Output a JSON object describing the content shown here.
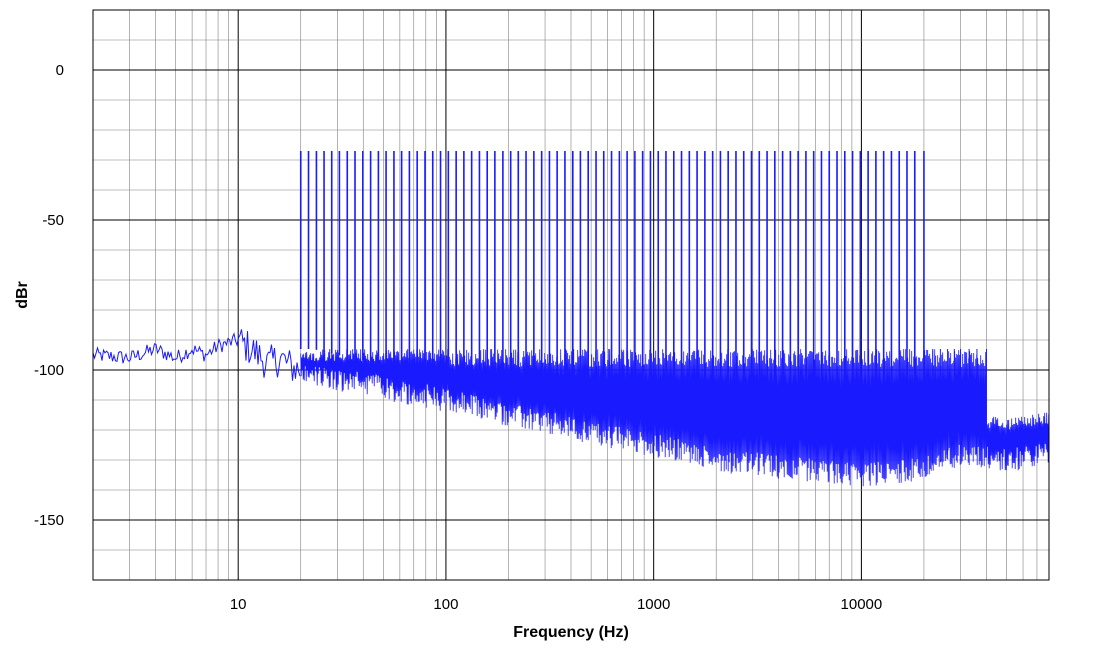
{
  "chart_data": {
    "type": "line",
    "title": "",
    "xlabel": "Frequency (Hz)",
    "ylabel": "dBr",
    "x_scale": "log",
    "xlim": [
      2,
      80000
    ],
    "ylim": [
      -170,
      20
    ],
    "x_ticks": [
      10,
      100,
      1000,
      10000
    ],
    "x_tick_labels": [
      "10",
      "100",
      "1000",
      "10000"
    ],
    "y_ticks": [
      0,
      -50,
      -100,
      -150
    ],
    "y_tick_labels": [
      "0",
      "-50",
      "-100",
      "-150"
    ],
    "grid": true,
    "legend": "none",
    "colors": {
      "series": "#1a1aff",
      "grid": "#808080",
      "major_grid": "#000000",
      "background": "#ffffff"
    },
    "series": [
      {
        "tone_peaks_db": -27,
        "tone_frequencies_hz": [
          20,
          21.8,
          23.8,
          25.9,
          28.2,
          30.7,
          33.5,
          36.5,
          39.8,
          43.4,
          47.3,
          51.5,
          56.2,
          61.2,
          66.7,
          72.7,
          79.3,
          86.4,
          94.2,
          102.7,
          112,
          122,
          133,
          145,
          158,
          172,
          188,
          205,
          223,
          243,
          265,
          289,
          315,
          343,
          374,
          408,
          444,
          484,
          528,
          575,
          627,
          684,
          745,
          812,
          885,
          965,
          1052,
          1146,
          1250,
          1362,
          1485,
          1618,
          1764,
          1923,
          2096,
          2284,
          2490,
          2714,
          2958,
          3224,
          3515,
          3830,
          4176,
          4551,
          4961,
          5407,
          5894,
          6424,
          7002,
          7632,
          8319,
          9068,
          9884,
          10774,
          11743,
          12800,
          13952,
          15208,
          16576,
          18068,
          20000
        ],
        "noise_floor_points": [
          [
            2,
            -95
          ],
          [
            3,
            -96
          ],
          [
            4,
            -93
          ],
          [
            5,
            -96
          ],
          [
            6,
            -93
          ],
          [
            7,
            -95
          ],
          [
            8,
            -92
          ],
          [
            10,
            -90
          ],
          [
            12,
            -94
          ],
          [
            14,
            -98
          ],
          [
            16,
            -96
          ],
          [
            18,
            -99
          ],
          [
            20,
            -100
          ],
          [
            30,
            -103
          ],
          [
            50,
            -106
          ],
          [
            100,
            -110
          ],
          [
            200,
            -115
          ],
          [
            500,
            -121
          ],
          [
            1000,
            -125
          ],
          [
            2000,
            -130
          ],
          [
            5000,
            -133
          ],
          [
            10000,
            -135
          ],
          [
            20000,
            -133
          ],
          [
            30000,
            -128
          ],
          [
            50000,
            -130
          ],
          [
            80000,
            -128
          ]
        ],
        "noise_band_top_db": -93,
        "spurs_hz": [
          22050,
          24000,
          26000,
          28000,
          30000,
          33000,
          36000,
          40000
        ],
        "spur_top_db": -93
      }
    ]
  }
}
